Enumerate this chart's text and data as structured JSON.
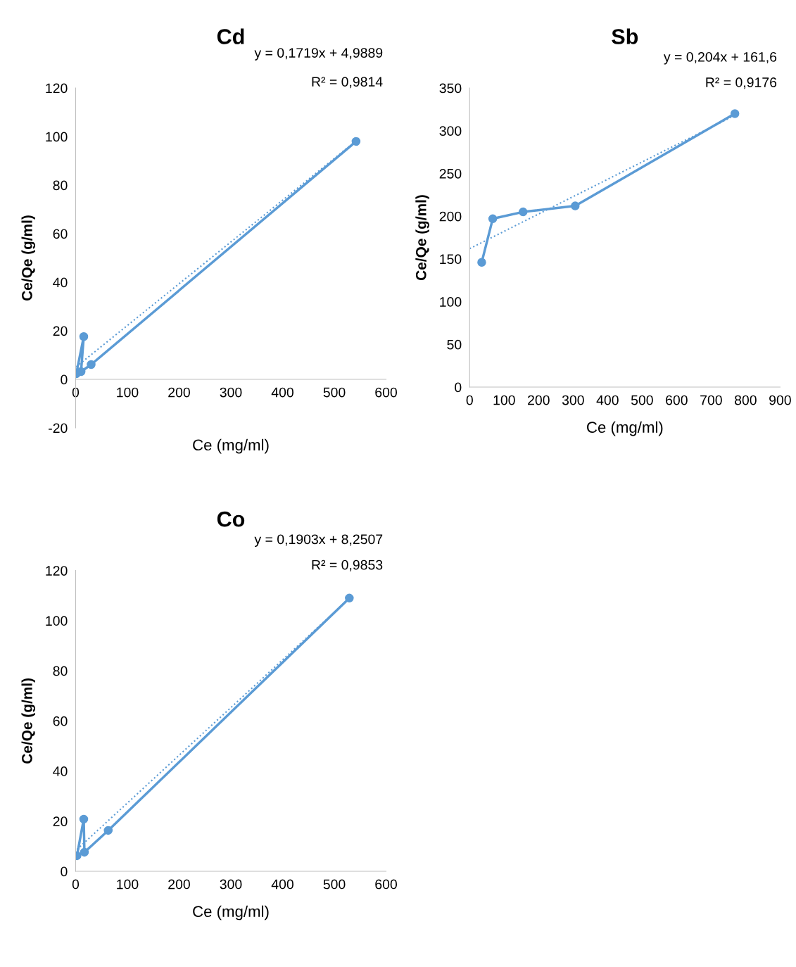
{
  "chart_data": [
    {
      "type": "line",
      "title": "Cd",
      "xlabel": "Ce (mg/ml)",
      "ylabel": "Ce/Qe (g/ml)",
      "xlim": [
        0,
        600
      ],
      "xticks": [
        0,
        100,
        200,
        300,
        400,
        500,
        600
      ],
      "ylim": [
        -20,
        120
      ],
      "yticks": [
        -20,
        0,
        20,
        40,
        60,
        80,
        100,
        120
      ],
      "grid": false,
      "annotations": [
        "y = 0,1719x + 4,9889",
        "R² = 0,9814"
      ],
      "series": [
        {
          "color": "#5b9bd5",
          "marker": "circle",
          "line_style": "solid",
          "x": [
            1.3,
            15.7,
            10.5,
            30,
            542
          ],
          "values": [
            2.3,
            17.6,
            3.2,
            6.1,
            98.0
          ]
        },
        {
          "color": "#5b9bd5",
          "marker": "none",
          "line_style": "dotted",
          "x": [
            1.3,
            542
          ],
          "values": [
            5.2,
            98.2
          ]
        }
      ]
    },
    {
      "type": "line",
      "title": "Sb",
      "xlabel": "Ce (mg/ml)",
      "ylabel": "Ce/Qe (g/ml)",
      "xlim": [
        0,
        900
      ],
      "xticks": [
        0,
        100,
        200,
        300,
        400,
        500,
        600,
        700,
        800,
        900
      ],
      "ylim": [
        0,
        350
      ],
      "yticks": [
        0,
        50,
        100,
        150,
        200,
        250,
        300,
        350
      ],
      "grid": false,
      "annotations": [
        "y = 0,204x + 161,6",
        "R² = 0,9176"
      ],
      "series": [
        {
          "color": "#5b9bd5",
          "marker": "circle",
          "line_style": "solid",
          "x": [
            35,
            67,
            155,
            306,
            769
          ],
          "values": [
            146,
            197,
            205,
            212,
            320
          ]
        },
        {
          "color": "#5b9bd5",
          "marker": "none",
          "line_style": "dotted",
          "x": [
            0,
            769
          ],
          "values": [
            162,
            318
          ]
        }
      ]
    },
    {
      "type": "line",
      "title": "Co",
      "xlabel": "Ce (mg/ml)",
      "ylabel": "Ce/Qe (g/ml)",
      "xlim": [
        0,
        600
      ],
      "xticks": [
        0,
        100,
        200,
        300,
        400,
        500,
        600
      ],
      "ylim": [
        0,
        120
      ],
      "yticks": [
        0,
        20,
        40,
        60,
        80,
        100,
        120
      ],
      "grid": false,
      "annotations": [
        "y = 0,1903x + 8,2507",
        "R² = 0,9853"
      ],
      "series": [
        {
          "color": "#5b9bd5",
          "marker": "circle",
          "line_style": "solid",
          "x": [
            2.6,
            15.7,
            17,
            63,
            529
          ],
          "values": [
            6.2,
            20.8,
            7.6,
            16.3,
            109.0
          ]
        },
        {
          "color": "#5b9bd5",
          "marker": "none",
          "line_style": "dotted",
          "x": [
            2.6,
            529
          ],
          "values": [
            8.7,
            108.9
          ]
        }
      ]
    }
  ]
}
